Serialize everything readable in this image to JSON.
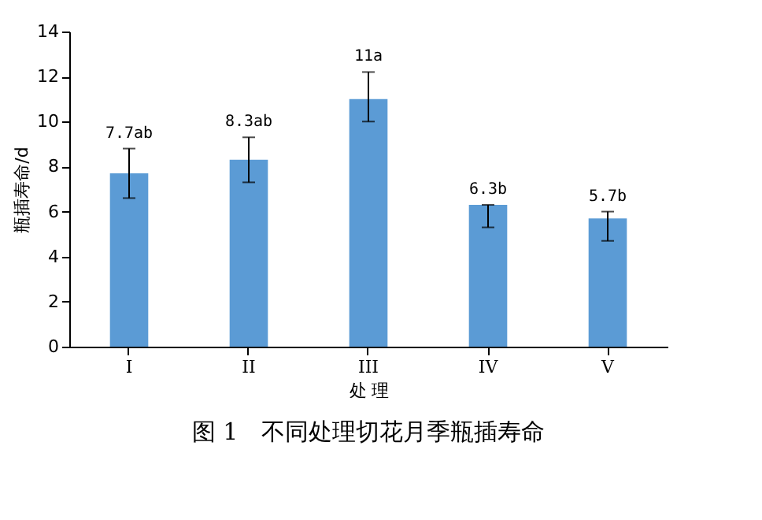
{
  "chart_data": {
    "type": "bar",
    "title": "图 1　不同处理切花月季瓶插寿命",
    "xlabel": "处 理",
    "ylabel": "瓶插寿命/d",
    "categories": [
      "I",
      "II",
      "III",
      "IV",
      "V"
    ],
    "values": [
      7.7,
      8.3,
      11,
      6.3,
      5.7
    ],
    "errors": [
      [
        6.6,
        8.8
      ],
      [
        7.3,
        9.3
      ],
      [
        10.0,
        12.2
      ],
      [
        5.3,
        6.3
      ],
      [
        4.7,
        6.0
      ]
    ],
    "value_labels": [
      "7.7ab",
      "8.3ab",
      "11a",
      "6.3b",
      "5.7b"
    ],
    "color": "#5b9bd5",
    "ylim": [
      0,
      14
    ],
    "yticks": [
      0,
      2,
      4,
      6,
      8,
      10,
      12,
      14
    ],
    "grid": false
  }
}
